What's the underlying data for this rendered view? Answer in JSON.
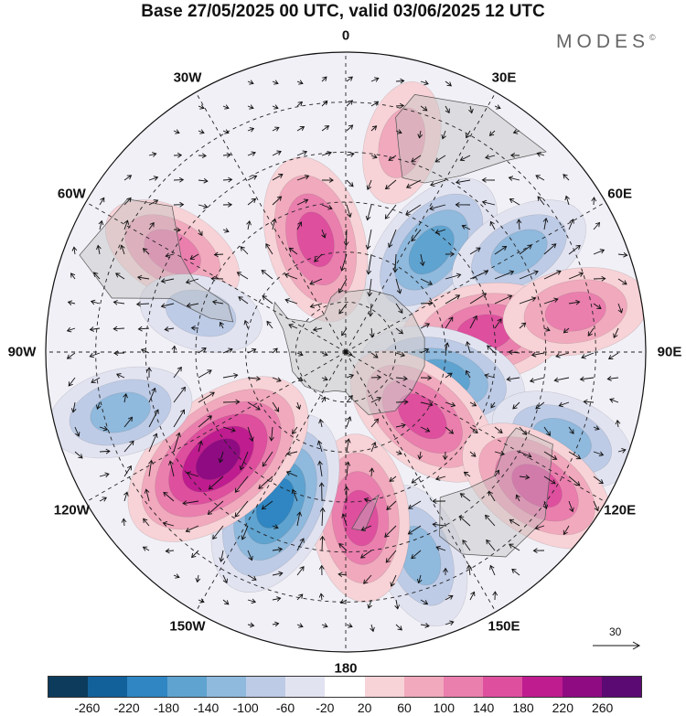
{
  "title": "Base 27/05/2025 00 UTC, valid 03/06/2025 12 UTC",
  "brand": "MODES",
  "brand_mark": "©",
  "longitude_labels": [
    {
      "text": "0",
      "angle": 0
    },
    {
      "text": "30E",
      "angle": 30
    },
    {
      "text": "60E",
      "angle": 60
    },
    {
      "text": "90E",
      "angle": 90
    },
    {
      "text": "120E",
      "angle": 120
    },
    {
      "text": "150E",
      "angle": 150
    },
    {
      "text": "180",
      "angle": 180
    },
    {
      "text": "150W",
      "angle": 210
    },
    {
      "text": "120W",
      "angle": 240
    },
    {
      "text": "90W",
      "angle": 270
    },
    {
      "text": "60W",
      "angle": 300
    },
    {
      "text": "30W",
      "angle": 330
    }
  ],
  "reference_vector": {
    "label": "30"
  },
  "colorbar": {
    "colors": [
      "#0c3b5c",
      "#13619a",
      "#2f86c2",
      "#5fa3d0",
      "#8fb9dd",
      "#bdcbe6",
      "#e2e3f1",
      "#ffffff",
      "#f7d2d6",
      "#f1a9bd",
      "#ea7fae",
      "#de4f9e",
      "#bf1c8f",
      "#8e0b82",
      "#5a0a72"
    ],
    "ticks": [
      "-260",
      "-220",
      "-180",
      "-140",
      "-100",
      "-60",
      "-20",
      "20",
      "60",
      "100",
      "140",
      "180",
      "220",
      "260"
    ]
  },
  "chart_data": {
    "type": "heatmap",
    "projection": "south-polar-stereographic",
    "field": "anomaly with wind vectors",
    "anomaly_centers": [
      {
        "lon": 15,
        "lat": -25,
        "value": 60
      },
      {
        "lon": 345,
        "lat": -55,
        "value": 140
      },
      {
        "lon": 40,
        "lat": -50,
        "value": -140
      },
      {
        "lon": 60,
        "lat": -30,
        "value": -100
      },
      {
        "lon": 300,
        "lat": -30,
        "value": 100
      },
      {
        "lon": 285,
        "lat": -45,
        "value": -60
      },
      {
        "lon": 82,
        "lat": -48,
        "value": 140
      },
      {
        "lon": 80,
        "lat": -20,
        "value": 100
      },
      {
        "lon": 105,
        "lat": -60,
        "value": -140
      },
      {
        "lon": 130,
        "lat": -60,
        "value": 140
      },
      {
        "lon": 112,
        "lat": -20,
        "value": -100
      },
      {
        "lon": 125,
        "lat": -20,
        "value": 140
      },
      {
        "lon": 160,
        "lat": -25,
        "value": -100
      },
      {
        "lon": 175,
        "lat": -40,
        "value": 140
      },
      {
        "lon": 205,
        "lat": -40,
        "value": -180
      },
      {
        "lon": 230,
        "lat": -40,
        "value": 220
      },
      {
        "lon": 255,
        "lat": -20,
        "value": -100
      }
    ]
  }
}
